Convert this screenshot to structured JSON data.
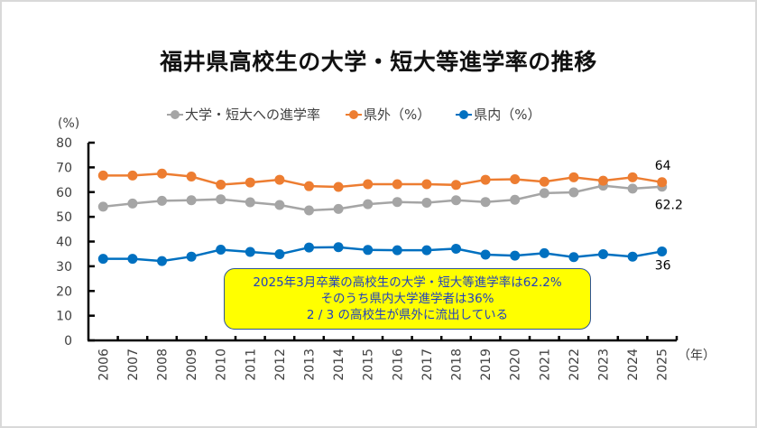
{
  "title": "福井県高校生の大学・短大等進学率の推移",
  "y_unit_label": "(%)",
  "x_unit_label": "（年）",
  "legend": [
    {
      "label": "大学・短大への進学率",
      "color": "#a5a5a5"
    },
    {
      "label": "県外（%）",
      "color": "#ed7d31"
    },
    {
      "label": "県内（%）",
      "color": "#0070c0"
    }
  ],
  "note": {
    "lines": [
      "2025年3月卒業の高校生の大学・短大等進学率は62.2%",
      "そのうち県内大学進学者は36%",
      "2 / 3 の高校生が県外に流出している"
    ],
    "background": "#ffff00",
    "text_color": "#1f3fbf"
  },
  "chart_data": {
    "type": "line",
    "title": "福井県高校生の大学・短大等進学率の推移",
    "xlabel": "（年）",
    "ylabel": "(%)",
    "ylim": [
      0,
      80
    ],
    "yticks": [
      0,
      10,
      20,
      30,
      40,
      50,
      60,
      70,
      80
    ],
    "grid": false,
    "legend_position": "top",
    "categories": [
      "2006",
      "2007",
      "2008",
      "2009",
      "2010",
      "2011",
      "2012",
      "2013",
      "2014",
      "2015",
      "2016",
      "2017",
      "2018",
      "2019",
      "2020",
      "2021",
      "2022",
      "2023",
      "2024",
      "2025"
    ],
    "series": [
      {
        "name": "大学・短大への進学率",
        "color": "#a5a5a5",
        "values": [
          54.1,
          55.4,
          56.5,
          56.7,
          57.1,
          55.9,
          54.8,
          52.6,
          53.2,
          55.1,
          56.0,
          55.7,
          56.7,
          56.0,
          56.9,
          59.6,
          59.9,
          62.6,
          61.4,
          62.2
        ],
        "end_label": "62.2"
      },
      {
        "name": "県外（%）",
        "color": "#ed7d31",
        "values": [
          66.7,
          66.7,
          67.5,
          66.3,
          63.0,
          63.9,
          65.0,
          62.4,
          62.1,
          63.2,
          63.2,
          63.2,
          62.9,
          65.0,
          65.2,
          64.2,
          66.0,
          64.6,
          66.0,
          64.0
        ],
        "end_label": "64"
      },
      {
        "name": "県内（%）",
        "color": "#0070c0",
        "values": [
          33.0,
          33.0,
          32.1,
          33.9,
          36.7,
          35.8,
          34.9,
          37.6,
          37.7,
          36.6,
          36.5,
          36.5,
          37.1,
          34.7,
          34.3,
          35.3,
          33.7,
          34.9,
          33.9,
          36.0
        ],
        "end_label": "36"
      }
    ]
  }
}
